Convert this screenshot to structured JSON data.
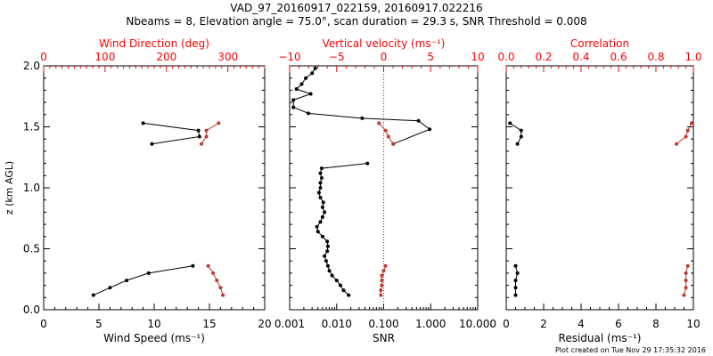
{
  "title_line1": "VAD_97_20160917_022159, 20160917.022216",
  "title_line2": "Nbeams = 8, Elevation angle = 75.0°, scan duration = 29.3 s, SNR Threshold = 0.008",
  "footer": "Plot created on Tue Nov 29 17:35:32 2016",
  "colors": {
    "black_series": "#000000",
    "red_series": "#c0392b",
    "red_axis": "#ff0000",
    "zero_line": "#ff0000"
  },
  "chart_data": [
    {
      "type": "line",
      "panel": "wind",
      "ylabel": "z (km AGL)",
      "ylim": [
        0,
        2.0
      ],
      "yticks": [
        "0.0",
        "0.5",
        "1.0",
        "1.5",
        "2.0"
      ],
      "xlabel": "Wind Speed (ms⁻¹)",
      "xlim": [
        0,
        20
      ],
      "xticks": [
        "0",
        "5",
        "10",
        "15",
        "20"
      ],
      "top_xlabel": "Wind Direction (deg)",
      "top_xlim": [
        0,
        360
      ],
      "top_xticks": [
        "0",
        "100",
        "200",
        "300"
      ],
      "series": [
        {
          "values": [
            {
              "x": 4.5,
              "y": 0.12
            },
            {
              "x": 6.0,
              "y": 0.18
            },
            {
              "x": 7.5,
              "y": 0.24
            },
            {
              "x": 9.5,
              "y": 0.3
            },
            {
              "x": 13.5,
              "y": 0.36
            }
          ]
        },
        {
          "values": [
            {
              "x": 9.0,
              "y": 1.53
            },
            {
              "x": 14.0,
              "y": 1.47
            },
            {
              "x": 14.1,
              "y": 1.42
            },
            {
              "x": 9.8,
              "y": 1.36
            }
          ]
        },
        {
          "axis": "top",
          "values": [
            {
              "x": 292,
              "y": 0.12
            },
            {
              "x": 288,
              "y": 0.18
            },
            {
              "x": 282,
              "y": 0.24
            },
            {
              "x": 276,
              "y": 0.3
            },
            {
              "x": 268,
              "y": 0.36
            }
          ]
        },
        {
          "axis": "top",
          "values": [
            {
              "x": 285,
              "y": 1.53
            },
            {
              "x": 265,
              "y": 1.47
            },
            {
              "x": 265,
              "y": 1.42
            },
            {
              "x": 257,
              "y": 1.36
            }
          ]
        }
      ]
    },
    {
      "type": "line",
      "panel": "snr",
      "ylim": [
        0,
        2.0
      ],
      "xlabel": "SNR",
      "xscale": "log",
      "xlim": [
        0.001,
        10
      ],
      "xticks": [
        "0.001",
        "0.010",
        "0.100",
        "1.000",
        "10.000"
      ],
      "top_xlabel": "Vertical velocity (ms⁻¹)",
      "top_xlim": [
        -10,
        10
      ],
      "top_xticks": [
        "−10",
        "−5",
        "0",
        "5",
        "10"
      ],
      "zero_line": 0,
      "series": [
        {
          "values": [
            {
              "x": 0.018,
              "y": 0.12
            },
            {
              "x": 0.014,
              "y": 0.16
            },
            {
              "x": 0.012,
              "y": 0.2
            },
            {
              "x": 0.01,
              "y": 0.24
            },
            {
              "x": 0.008,
              "y": 0.28
            },
            {
              "x": 0.007,
              "y": 0.32
            },
            {
              "x": 0.0065,
              "y": 0.36
            },
            {
              "x": 0.006,
              "y": 0.4
            },
            {
              "x": 0.0055,
              "y": 0.44
            },
            {
              "x": 0.0063,
              "y": 0.48
            },
            {
              "x": 0.0065,
              "y": 0.52
            },
            {
              "x": 0.0063,
              "y": 0.56
            },
            {
              "x": 0.005,
              "y": 0.6
            },
            {
              "x": 0.004,
              "y": 0.64
            },
            {
              "x": 0.0038,
              "y": 0.68
            },
            {
              "x": 0.0045,
              "y": 0.72
            },
            {
              "x": 0.005,
              "y": 0.76
            },
            {
              "x": 0.0055,
              "y": 0.8
            },
            {
              "x": 0.005,
              "y": 0.84
            },
            {
              "x": 0.0052,
              "y": 0.88
            },
            {
              "x": 0.0045,
              "y": 0.92
            },
            {
              "x": 0.0042,
              "y": 0.96
            },
            {
              "x": 0.0045,
              "y": 1.0
            },
            {
              "x": 0.0045,
              "y": 1.04
            },
            {
              "x": 0.0048,
              "y": 1.08
            },
            {
              "x": 0.0045,
              "y": 1.12
            },
            {
              "x": 0.0048,
              "y": 1.16
            },
            {
              "x": 0.045,
              "y": 1.2
            }
          ]
        },
        {
          "values": [
            {
              "x": 0.16,
              "y": 1.36
            },
            {
              "x": 0.95,
              "y": 1.48
            },
            {
              "x": 0.55,
              "y": 1.55
            },
            {
              "x": 0.035,
              "y": 1.57
            },
            {
              "x": 0.0025,
              "y": 1.61
            },
            {
              "x": 0.0012,
              "y": 1.66
            },
            {
              "x": 0.0012,
              "y": 1.72
            },
            {
              "x": 0.0028,
              "y": 1.77
            },
            {
              "x": 0.0014,
              "y": 1.81
            },
            {
              "x": 0.0018,
              "y": 1.85
            },
            {
              "x": 0.0022,
              "y": 1.9
            },
            {
              "x": 0.003,
              "y": 1.94
            },
            {
              "x": 0.0035,
              "y": 1.98
            }
          ]
        },
        {
          "axis": "top",
          "values": [
            {
              "x": -0.3,
              "y": 0.12
            },
            {
              "x": -0.3,
              "y": 0.16
            },
            {
              "x": -0.2,
              "y": 0.2
            },
            {
              "x": -0.2,
              "y": 0.24
            },
            {
              "x": -0.2,
              "y": 0.28
            },
            {
              "x": 0.0,
              "y": 0.32
            },
            {
              "x": 0.2,
              "y": 0.36
            }
          ]
        },
        {
          "axis": "top",
          "values": [
            {
              "x": 1.0,
              "y": 1.36
            },
            {
              "x": 0.5,
              "y": 1.42
            },
            {
              "x": 0.2,
              "y": 1.47
            },
            {
              "x": -0.5,
              "y": 1.53
            }
          ]
        }
      ]
    },
    {
      "type": "line",
      "panel": "residual",
      "ylim": [
        0,
        2.0
      ],
      "xlabel": "Residual (ms⁻¹)",
      "xlim": [
        0,
        10
      ],
      "xticks": [
        "0",
        "2",
        "4",
        "6",
        "8",
        "10"
      ],
      "top_xlabel": "Correlation",
      "top_xlim": [
        0,
        1
      ],
      "top_xticks": [
        "0.0",
        "0.2",
        "0.4",
        "0.6",
        "0.8",
        "1.0"
      ],
      "series": [
        {
          "values": [
            {
              "x": 0.5,
              "y": 0.12
            },
            {
              "x": 0.5,
              "y": 0.18
            },
            {
              "x": 0.5,
              "y": 0.24
            },
            {
              "x": 0.6,
              "y": 0.3
            },
            {
              "x": 0.5,
              "y": 0.36
            }
          ]
        },
        {
          "values": [
            {
              "x": 0.2,
              "y": 1.53
            },
            {
              "x": 0.8,
              "y": 1.47
            },
            {
              "x": 0.8,
              "y": 1.42
            },
            {
              "x": 0.6,
              "y": 1.36
            }
          ]
        },
        {
          "axis": "top",
          "values": [
            {
              "x": 0.95,
              "y": 0.12
            },
            {
              "x": 0.96,
              "y": 0.18
            },
            {
              "x": 0.96,
              "y": 0.24
            },
            {
              "x": 0.96,
              "y": 0.3
            },
            {
              "x": 0.97,
              "y": 0.36
            }
          ]
        },
        {
          "axis": "top",
          "values": [
            {
              "x": 0.99,
              "y": 1.53
            },
            {
              "x": 0.97,
              "y": 1.47
            },
            {
              "x": 0.96,
              "y": 1.42
            },
            {
              "x": 0.91,
              "y": 1.36
            }
          ]
        }
      ]
    }
  ]
}
